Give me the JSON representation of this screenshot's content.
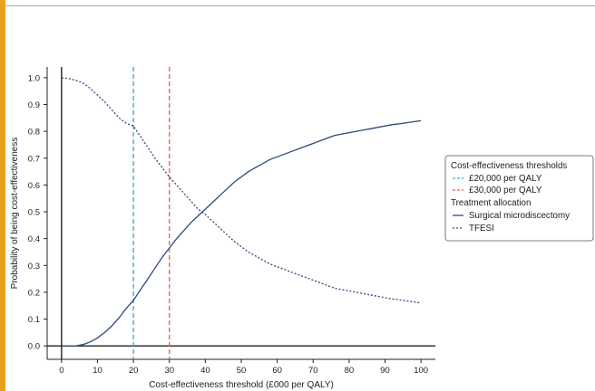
{
  "chart_data": {
    "type": "line",
    "xlabel": "Cost-effectiveness threshold (£000 per QALY)",
    "ylabel": "Probability of being cost-effectiveness",
    "xlim": [
      -4,
      104
    ],
    "ylim": [
      -0.05,
      1.04
    ],
    "xticks": [
      "0",
      "10",
      "20",
      "30",
      "40",
      "50",
      "60",
      "70",
      "80",
      "90",
      "100"
    ],
    "yticks": [
      "0.0",
      "0.1",
      "0.2",
      "0.3",
      "0.4",
      "0.5",
      "0.6",
      "0.7",
      "0.8",
      "0.9",
      "1.0"
    ],
    "thresholds": [
      {
        "name": "£20,000 per QALY",
        "x": 20,
        "color": "#3aa7c4"
      },
      {
        "name": "£30,000 per QALY",
        "x": 30,
        "color": "#e0634f"
      }
    ],
    "x": [
      0,
      2,
      4,
      6,
      8,
      10,
      12,
      14,
      16,
      18,
      20,
      22,
      24,
      26,
      28,
      30,
      32,
      34,
      36,
      38,
      40,
      42,
      44,
      46,
      48,
      50,
      52,
      54,
      56,
      58,
      60,
      62,
      64,
      66,
      68,
      70,
      72,
      74,
      76,
      78,
      80,
      82,
      84,
      86,
      88,
      90,
      92,
      94,
      96,
      98,
      100
    ],
    "series": [
      {
        "name": "Surgical microdiscectomy",
        "color": "#2f4a7a",
        "dash": "solid",
        "values": [
          0.0,
          0.0,
          0.0,
          0.005,
          0.015,
          0.03,
          0.05,
          0.075,
          0.105,
          0.14,
          0.17,
          0.21,
          0.25,
          0.29,
          0.33,
          0.365,
          0.4,
          0.43,
          0.46,
          0.485,
          0.51,
          0.535,
          0.56,
          0.585,
          0.61,
          0.63,
          0.65,
          0.665,
          0.68,
          0.695,
          0.705,
          0.715,
          0.725,
          0.735,
          0.745,
          0.755,
          0.765,
          0.775,
          0.785,
          0.79,
          0.795,
          0.8,
          0.805,
          0.81,
          0.815,
          0.82,
          0.825,
          0.828,
          0.832,
          0.836,
          0.84
        ]
      },
      {
        "name": "TFESI",
        "color": "#2f4a7a",
        "dash": "dotted",
        "values": [
          1.0,
          0.997,
          0.99,
          0.98,
          0.96,
          0.935,
          0.91,
          0.88,
          0.85,
          0.83,
          0.82,
          0.78,
          0.74,
          0.7,
          0.665,
          0.63,
          0.6,
          0.57,
          0.54,
          0.51,
          0.49,
          0.465,
          0.44,
          0.415,
          0.39,
          0.37,
          0.35,
          0.335,
          0.32,
          0.305,
          0.295,
          0.285,
          0.275,
          0.265,
          0.255,
          0.245,
          0.235,
          0.225,
          0.215,
          0.21,
          0.205,
          0.2,
          0.195,
          0.19,
          0.185,
          0.18,
          0.175,
          0.172,
          0.168,
          0.164,
          0.16
        ]
      }
    ],
    "legend": {
      "position": "right",
      "title_thresholds": "Cost-effectiveness thresholds",
      "title_allocation": "Treatment allocation"
    }
  }
}
